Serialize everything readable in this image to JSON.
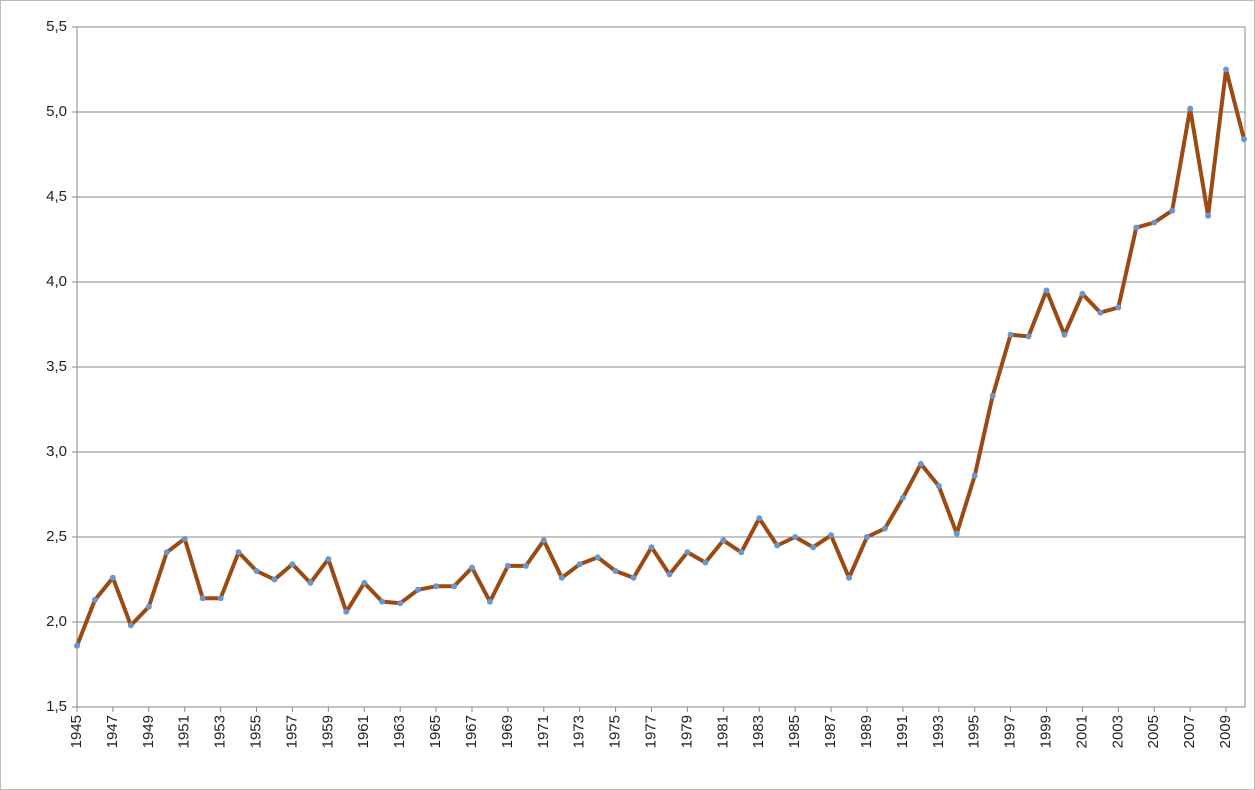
{
  "chart_data": {
    "type": "line",
    "x": [
      1945,
      1946,
      1947,
      1948,
      1949,
      1950,
      1951,
      1952,
      1953,
      1954,
      1955,
      1956,
      1957,
      1958,
      1959,
      1960,
      1961,
      1962,
      1963,
      1964,
      1965,
      1966,
      1967,
      1968,
      1969,
      1970,
      1971,
      1972,
      1973,
      1974,
      1975,
      1976,
      1977,
      1978,
      1979,
      1980,
      1981,
      1982,
      1983,
      1984,
      1985,
      1986,
      1987,
      1988,
      1989,
      1990,
      1991,
      1992,
      1993,
      1994,
      1995,
      1996,
      1997,
      1998,
      1999,
      2000,
      2001,
      2002,
      2003,
      2004,
      2005,
      2006,
      2007,
      2008,
      2009,
      2010
    ],
    "series": [
      {
        "color": "#9a4a12",
        "marker_color": "#6a96d0",
        "values": [
          1.86,
          2.13,
          2.26,
          1.98,
          2.09,
          2.41,
          2.49,
          2.14,
          2.14,
          2.41,
          2.3,
          2.25,
          2.34,
          2.23,
          2.37,
          2.06,
          2.23,
          2.12,
          2.11,
          2.19,
          2.21,
          2.21,
          2.32,
          2.12,
          2.33,
          2.33,
          2.48,
          2.26,
          2.34,
          2.38,
          2.3,
          2.26,
          2.44,
          2.28,
          2.41,
          2.35,
          2.48,
          2.41,
          2.61,
          2.45,
          2.5,
          2.44,
          2.51,
          2.26,
          2.5,
          2.55,
          2.73,
          2.93,
          2.8,
          2.52,
          2.86,
          3.33,
          3.69,
          3.68,
          3.95,
          3.69,
          3.93,
          3.82,
          3.85,
          4.32,
          4.35,
          4.42,
          5.02,
          4.39,
          5.25,
          4.84
        ]
      }
    ],
    "xlim": [
      1945,
      2010
    ],
    "xticks": [
      1945,
      1947,
      1949,
      1951,
      1953,
      1955,
      1957,
      1959,
      1961,
      1963,
      1965,
      1967,
      1969,
      1971,
      1973,
      1975,
      1977,
      1979,
      1981,
      1983,
      1985,
      1987,
      1989,
      1991,
      1993,
      1995,
      1997,
      1999,
      2001,
      2003,
      2005,
      2007,
      2009
    ],
    "ylim": [
      1.5,
      5.5
    ],
    "yticks": [
      {
        "value": 1.5,
        "label": "1,5"
      },
      {
        "value": 2.0,
        "label": "2,0"
      },
      {
        "value": 2.5,
        "label": "2,5"
      },
      {
        "value": 3.0,
        "label": "3,0"
      },
      {
        "value": 3.5,
        "label": "3,5"
      },
      {
        "value": 4.0,
        "label": "4,0"
      },
      {
        "value": 4.5,
        "label": "4,5"
      },
      {
        "value": 5.0,
        "label": "5,0"
      },
      {
        "value": 5.5,
        "label": "5,5"
      }
    ],
    "grid": true
  }
}
